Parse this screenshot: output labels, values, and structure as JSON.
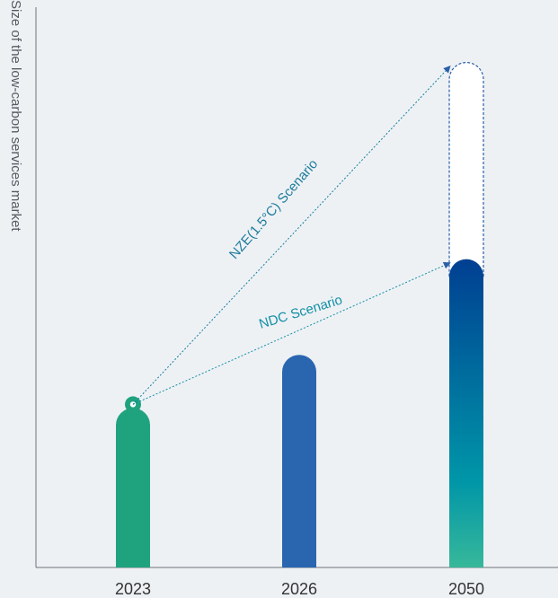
{
  "chart_data": {
    "type": "bar",
    "title": "",
    "xlabel": "",
    "ylabel": "Size of the low-carbon services market",
    "categories": [
      "2023",
      "2026",
      "2050"
    ],
    "series": [
      {
        "name": "NDC Scenario",
        "values": [
          3,
          4,
          5.8
        ]
      },
      {
        "name": "NZE(1.5°C) Scenario",
        "values": [
          3,
          4,
          9.5
        ]
      }
    ],
    "ylim": [
      0,
      10
    ],
    "grid": false,
    "colors": {
      "2023": "#1fa37f",
      "2026": "#2a66b0",
      "2050_top": "#003f92",
      "2050_mid": "#0096a8",
      "2050_bottom": "#37b89a",
      "ndc_arrow": "#1290a6",
      "nze_arrow": "#137fa0",
      "background": "#eef1f4",
      "axis": "#6f747a"
    },
    "annotations": [
      {
        "text": "NDC Scenario",
        "color": "#1290a6"
      },
      {
        "text": "NZE(1.5°C) Scenario",
        "color": "#1d7c9c"
      }
    ]
  }
}
